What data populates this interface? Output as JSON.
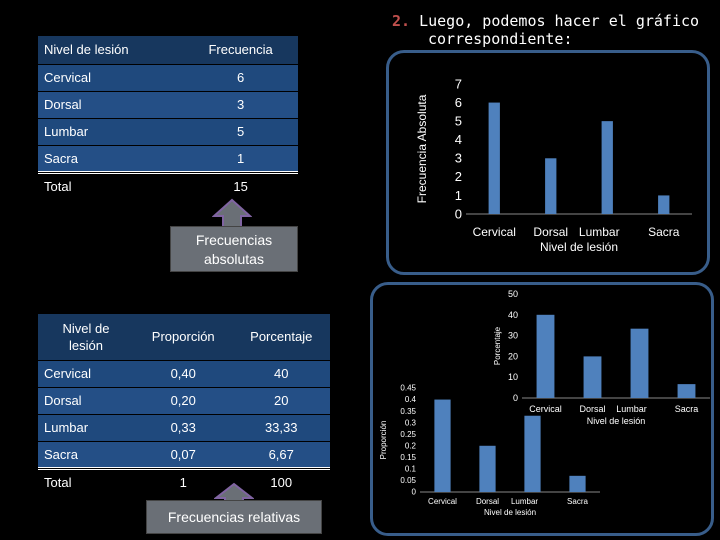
{
  "slide_title": {
    "number": "2.",
    "line1": "Luego, podemos hacer el gráfico",
    "line2": "correspondiente:"
  },
  "table_abs": {
    "headers": [
      "Nivel de lesión",
      "Frecuencia"
    ],
    "rows": [
      {
        "label": "Cervical",
        "value": "6"
      },
      {
        "label": "Dorsal",
        "value": "3"
      },
      {
        "label": "Lumbar",
        "value": "5"
      },
      {
        "label": "Sacra",
        "value": "1"
      }
    ],
    "total": {
      "label": "Total",
      "value": "15"
    }
  },
  "callout_abs": {
    "line1": "Frecuencias",
    "line2": "absolutas"
  },
  "table_rel": {
    "headers": [
      "Nivel de lesión",
      "Proporción",
      "Porcentaje"
    ],
    "rows": [
      {
        "label": "Cervical",
        "prop": "0,40",
        "pct": "40"
      },
      {
        "label": "Dorsal",
        "prop": "0,20",
        "pct": "20"
      },
      {
        "label": "Lumbar",
        "prop": "0,33",
        "pct": "33,33"
      },
      {
        "label": "Sacra",
        "prop": "0,07",
        "pct": "6,67"
      }
    ],
    "total": {
      "label": "Total",
      "prop": "1",
      "pct": "100"
    }
  },
  "callout_rel": "Frecuencias relativas",
  "colors": {
    "bar": "#4f81bd",
    "frame": "#385d8a",
    "header": "#17375e",
    "row": "#1f497d",
    "callout": "#6a6f76"
  },
  "chart_data": [
    {
      "type": "bar",
      "categories": [
        "Cervical",
        "Dorsal",
        "Lumbar",
        "Sacra"
      ],
      "values": [
        6,
        3,
        5,
        1
      ],
      "ylabel": "Frecuencia Absoluta",
      "xlabel": "Nivel de lesión",
      "ylim": [
        0,
        7
      ],
      "yticks": [
        "0",
        "1",
        "2",
        "3",
        "4",
        "5",
        "6",
        "7"
      ]
    },
    {
      "type": "bar",
      "categories": [
        "Cervical",
        "Dorsal",
        "Lumbar",
        "Sacra"
      ],
      "values": [
        40,
        20,
        33.33,
        6.67
      ],
      "ylabel": "Porcentaje",
      "xlabel": "Nivel de lesión",
      "ylim": [
        0,
        50
      ],
      "yticks": [
        "0",
        "10",
        "20",
        "30",
        "40",
        "50"
      ]
    },
    {
      "type": "bar",
      "categories": [
        "Cervical",
        "Dorsal",
        "Lumbar",
        "Sacra"
      ],
      "values": [
        0.4,
        0.2,
        0.33,
        0.07
      ],
      "ylabel": "Proporción",
      "xlabel": "Nivel de lesión",
      "ylim": [
        0,
        0.45
      ],
      "yticks": [
        "0",
        "0.05",
        "0.1",
        "0.15",
        "0.2",
        "0.25",
        "0.3",
        "0.35",
        "0.4",
        "0.45"
      ]
    }
  ]
}
